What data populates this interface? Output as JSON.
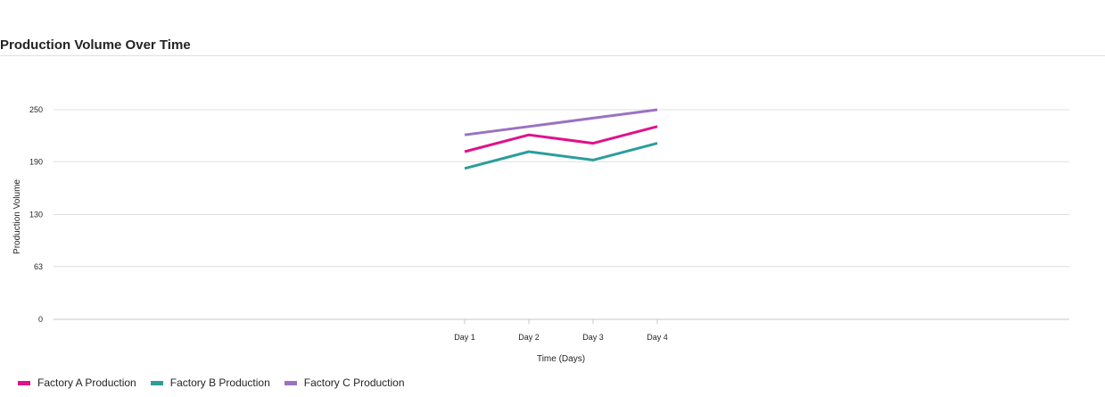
{
  "chart_data": {
    "type": "line",
    "title": "Production Volume Over Time",
    "xlabel": "Time (Days)",
    "ylabel": "Production Volume",
    "categories": [
      "Day 1",
      "Day 2",
      "Day 3",
      "Day 4"
    ],
    "yticks": [
      "0",
      "63",
      "130",
      "190",
      "250"
    ],
    "ytick_values": [
      0,
      63,
      125,
      188,
      250
    ],
    "ylim": [
      0,
      250
    ],
    "grid": true,
    "legend_position": "bottom-left",
    "series": [
      {
        "name": "Factory A Production",
        "color": "#e0128a",
        "values": [
          200,
          220,
          210,
          230
        ]
      },
      {
        "name": "Factory B Production",
        "color": "#2b9e9c",
        "values": [
          180,
          200,
          190,
          210
        ]
      },
      {
        "name": "Factory C Production",
        "color": "#9b72c2",
        "values": [
          220,
          230,
          240,
          250
        ]
      }
    ]
  }
}
